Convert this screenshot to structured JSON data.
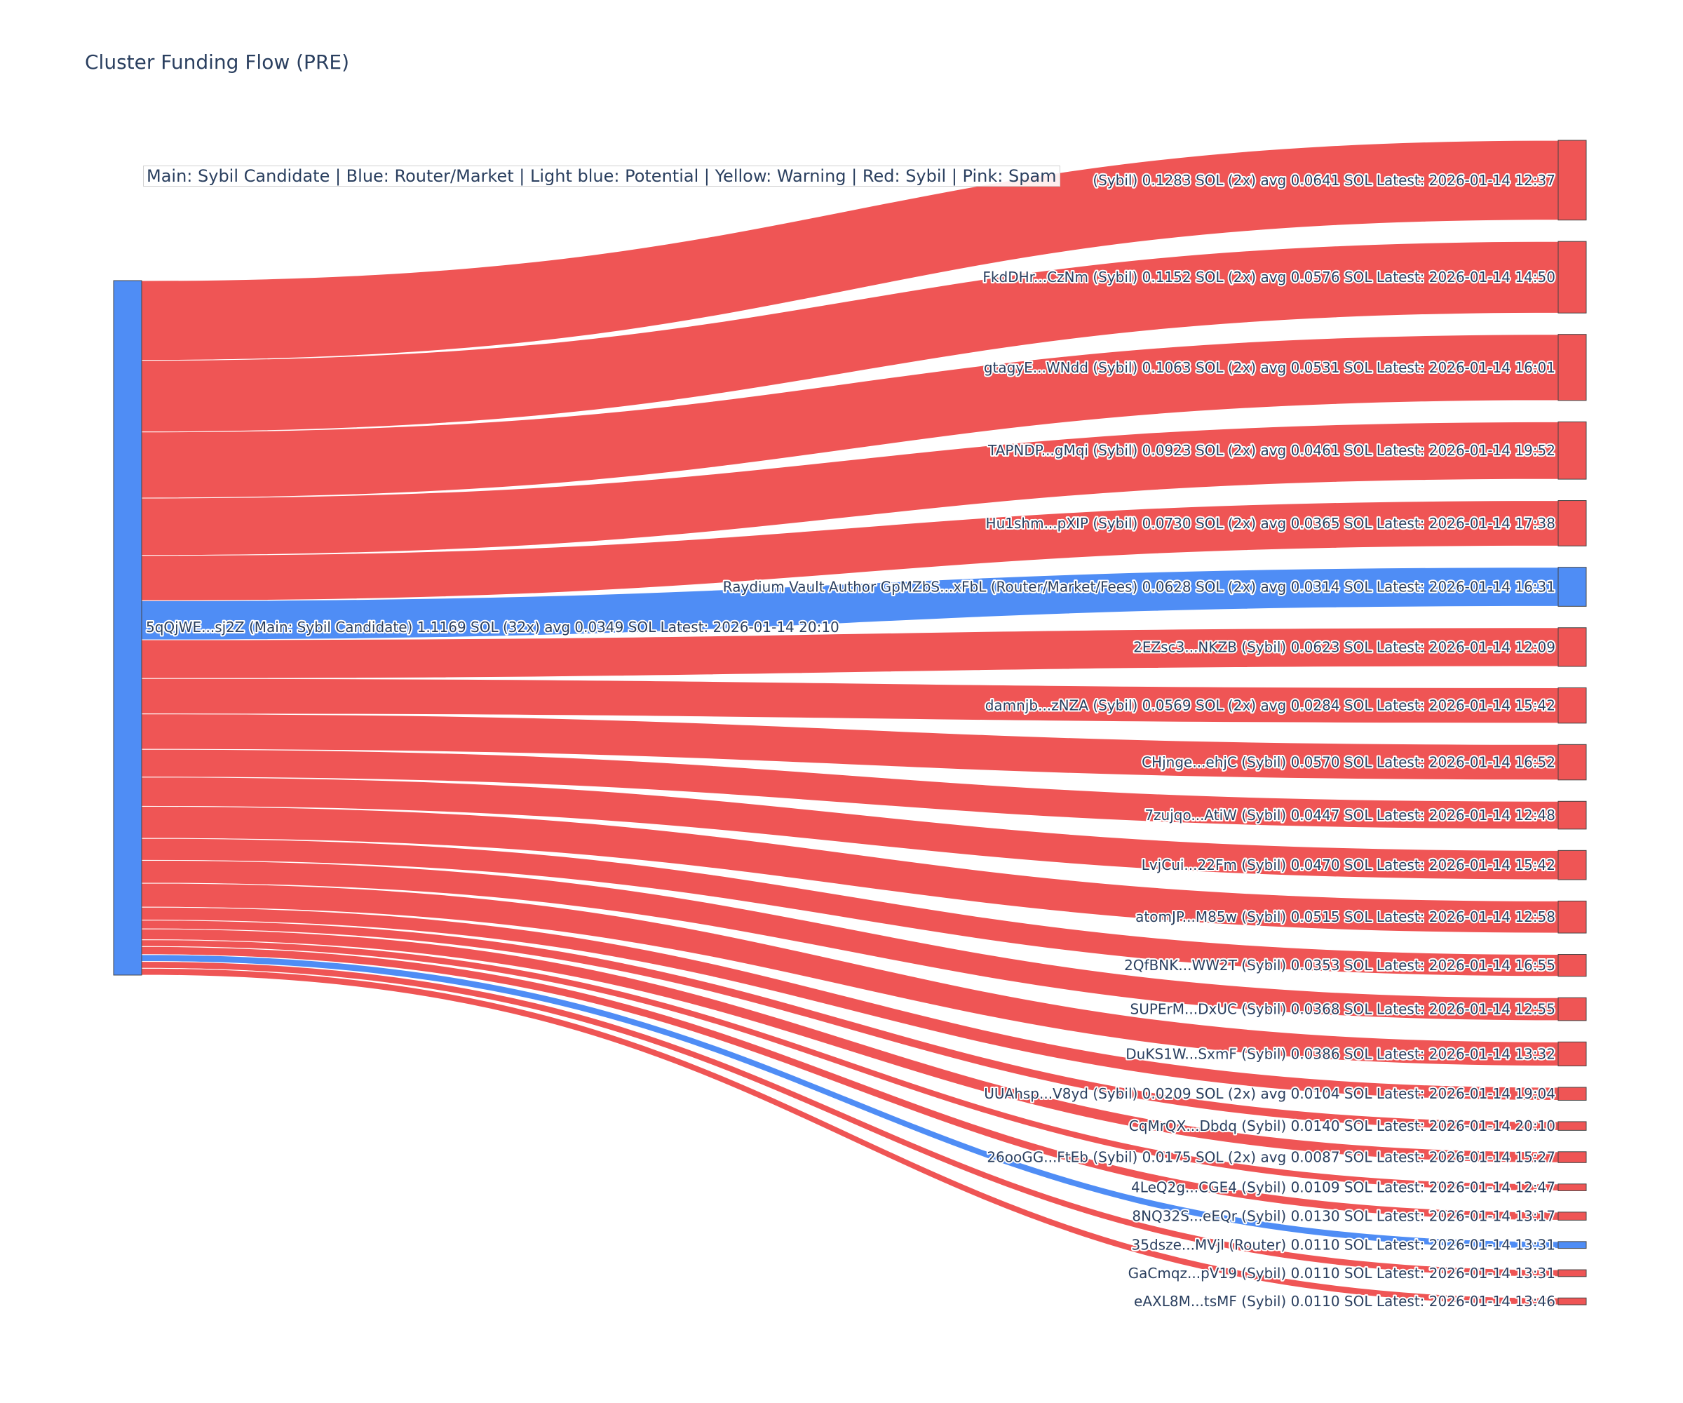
{
  "chart_data": {
    "type": "sankey",
    "title": "Cluster Funding Flow (PRE)",
    "annotation": "Main: Sybil Candidate  |  Blue: Router/Market | Light blue: Potential | Yellow: Warning | Red: Sybil | Pink: Spam",
    "colors": {
      "sybil": "#ef5555",
      "router": "#4f8df5",
      "main": "#4f8df5"
    },
    "source": {
      "label": "5qQjWE...sj2Z (Main: Sybil Candidate) 1.1169 SOL (32x) avg 0.0349 SOL Latest: 2026-01-14 20:10",
      "value": 1.1169,
      "type": "main"
    },
    "targets": [
      {
        "label": "(Sybil) 0.1283 SOL (2x) avg 0.0641 SOL Latest: 2026-01-14 12:37",
        "value": 0.1283,
        "type": "sybil"
      },
      {
        "label": "FkdDHr...CzNm (Sybil) 0.1152 SOL (2x) avg 0.0576 SOL Latest: 2026-01-14 14:50",
        "value": 0.1152,
        "type": "sybil"
      },
      {
        "label": "gtagyE...WNdd (Sybil) 0.1063 SOL (2x) avg 0.0531 SOL Latest: 2026-01-14 16:01",
        "value": 0.1063,
        "type": "sybil"
      },
      {
        "label": "TAPNDP...gMqi (Sybil) 0.0923 SOL (2x) avg 0.0461 SOL Latest: 2026-01-14 19:52",
        "value": 0.0923,
        "type": "sybil"
      },
      {
        "label": "Hu1shm...pXIP (Sybil) 0.0730 SOL (2x) avg 0.0365 SOL Latest: 2026-01-14 17:38",
        "value": 0.073,
        "type": "sybil"
      },
      {
        "label": "Raydium Vault Author GpMZbS...xFbL (Router/Market/Fees) 0.0628 SOL (2x) avg 0.0314 SOL Latest: 2026-01-14 16:31",
        "value": 0.0628,
        "type": "router"
      },
      {
        "label": "2EZsc3...NKZB (Sybil) 0.0623 SOL Latest: 2026-01-14 12:09",
        "value": 0.0623,
        "type": "sybil"
      },
      {
        "label": "damnjb...zNZA (Sybil) 0.0569 SOL (2x) avg 0.0284 SOL Latest: 2026-01-14 15:42",
        "value": 0.0569,
        "type": "sybil"
      },
      {
        "label": "CHjnge...ehjC (Sybil) 0.0570 SOL Latest: 2026-01-14 16:52",
        "value": 0.057,
        "type": "sybil"
      },
      {
        "label": "7zujqo...AtiW (Sybil) 0.0447 SOL Latest: 2026-01-14 12:48",
        "value": 0.0447,
        "type": "sybil"
      },
      {
        "label": "LvjCui...22Fm (Sybil) 0.0470 SOL Latest: 2026-01-14 15:42",
        "value": 0.047,
        "type": "sybil"
      },
      {
        "label": "atomJP...M85w (Sybil) 0.0515 SOL Latest: 2026-01-14 12:58",
        "value": 0.0515,
        "type": "sybil"
      },
      {
        "label": "2QfBNK...WW2T (Sybil) 0.0353 SOL Latest: 2026-01-14 16:55",
        "value": 0.0353,
        "type": "sybil"
      },
      {
        "label": "SUPErM...DxUC (Sybil) 0.0368 SOL Latest: 2026-01-14 12:55",
        "value": 0.0368,
        "type": "sybil"
      },
      {
        "label": "DuKS1W...SxmF (Sybil) 0.0386 SOL Latest: 2026-01-14 13:32",
        "value": 0.0386,
        "type": "sybil"
      },
      {
        "label": "UUAhsp...V8yd (Sybil) 0.0209 SOL (2x) avg 0.0104 SOL Latest: 2026-01-14 19:04",
        "value": 0.0209,
        "type": "sybil"
      },
      {
        "label": "CqMrQX...Dbdq (Sybil) 0.0140 SOL Latest: 2026-01-14 20:10",
        "value": 0.014,
        "type": "sybil"
      },
      {
        "label": "26ooGG...FtEb (Sybil) 0.0175 SOL (2x) avg 0.0087 SOL Latest: 2026-01-14 15:27",
        "value": 0.0175,
        "type": "sybil"
      },
      {
        "label": "4LeQ2g...CGE4 (Sybil) 0.0109 SOL Latest: 2026-01-14 12:47",
        "value": 0.0109,
        "type": "sybil"
      },
      {
        "label": "8NQ32S...eEQr (Sybil) 0.0130 SOL Latest: 2026-01-14 13:17",
        "value": 0.013,
        "type": "sybil"
      },
      {
        "label": "35dsze...MVjl (Router) 0.0110 SOL Latest: 2026-01-14 13:31",
        "value": 0.011,
        "type": "router"
      },
      {
        "label": "GaCmqz...pV19 (Sybil) 0.0110 SOL Latest: 2026-01-14 13:31",
        "value": 0.011,
        "type": "sybil"
      },
      {
        "label": "eAXL8M...tsMF (Sybil) 0.0110 SOL Latest: 2026-01-14 13:46",
        "value": 0.011,
        "type": "sybil"
      }
    ]
  }
}
